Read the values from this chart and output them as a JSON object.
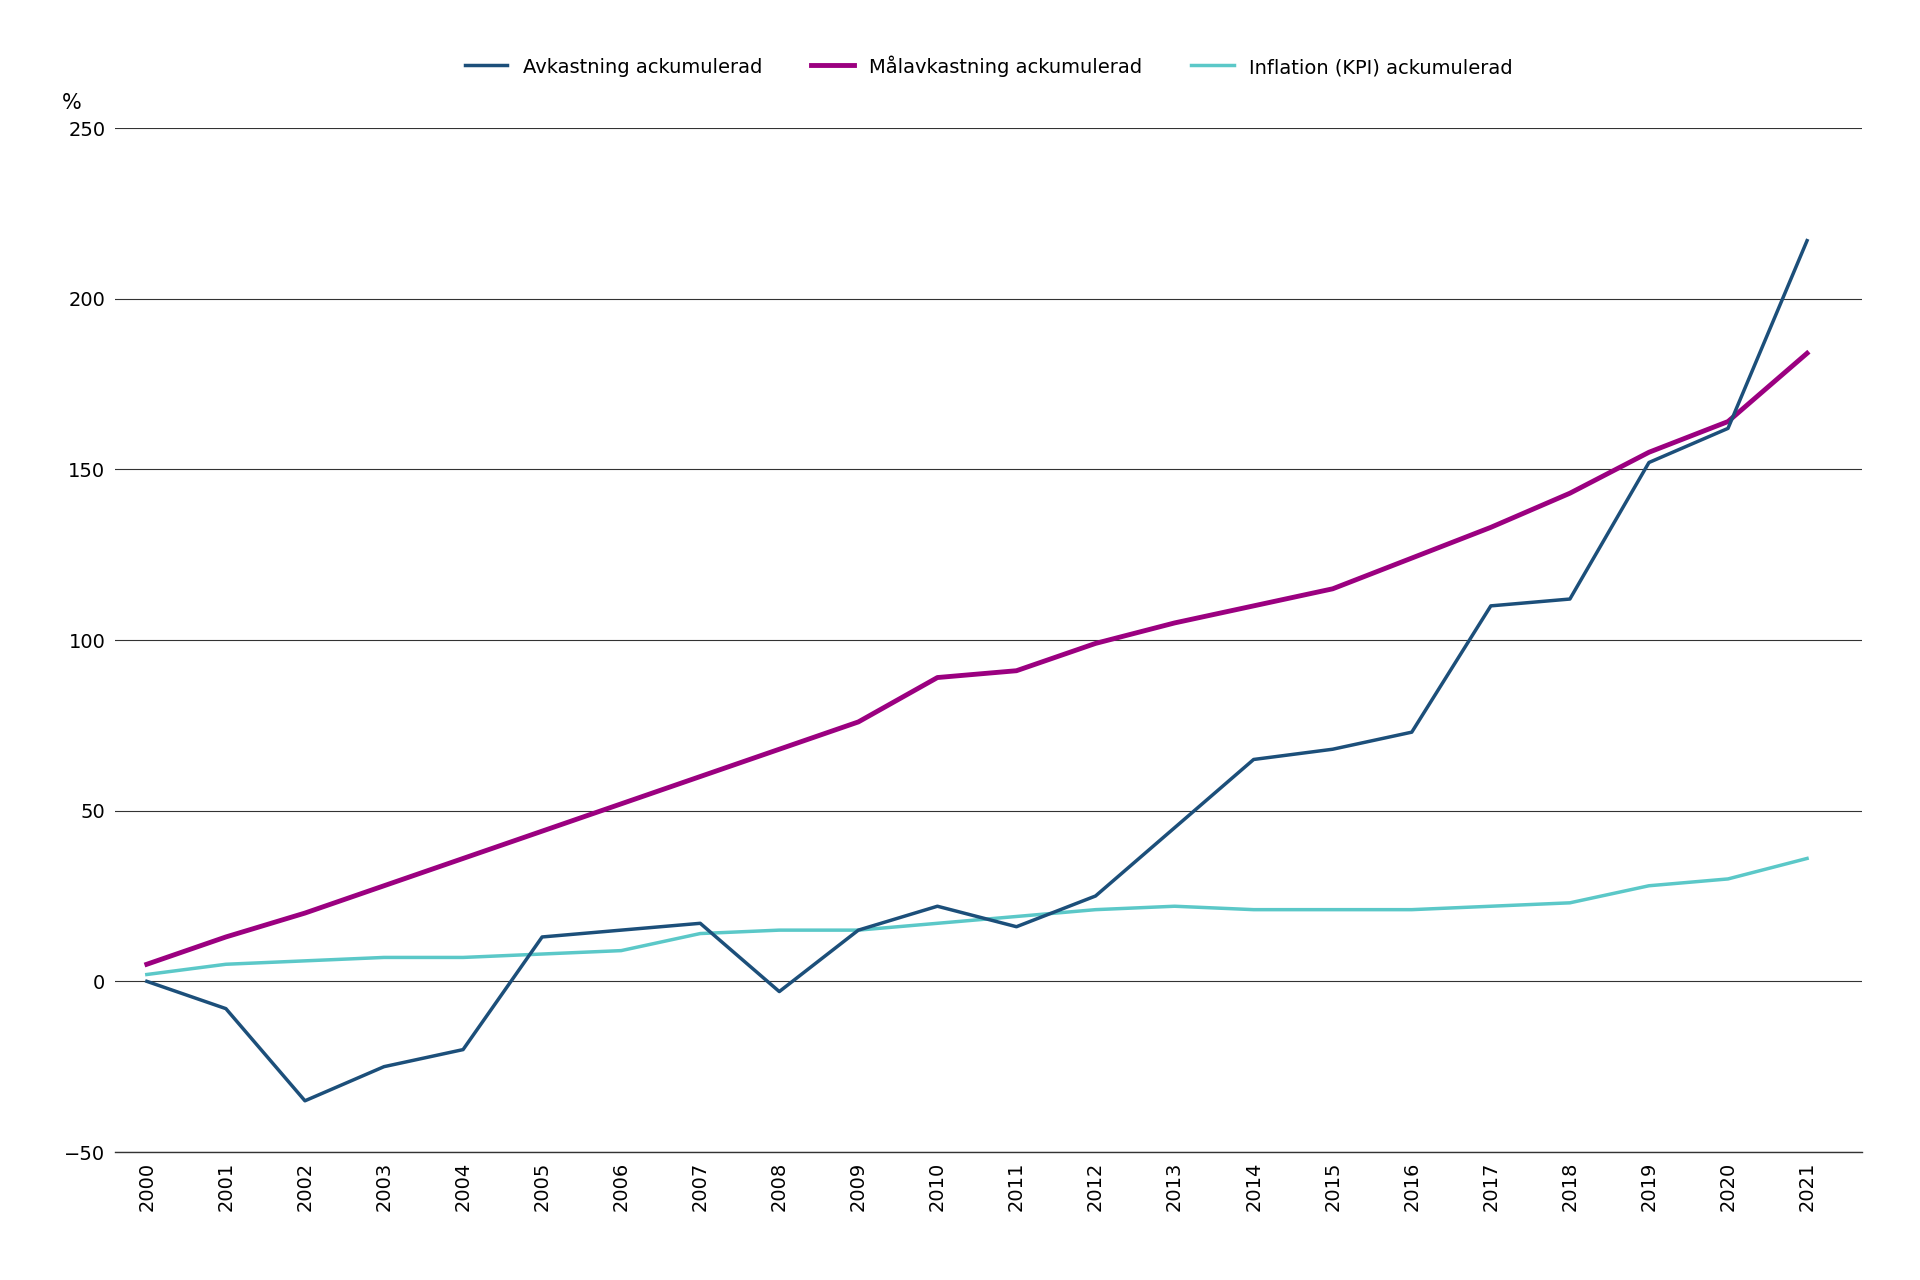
{
  "years": [
    2000,
    2001,
    2002,
    2003,
    2004,
    2005,
    2006,
    2007,
    2008,
    2009,
    2010,
    2011,
    2012,
    2013,
    2014,
    2015,
    2016,
    2017,
    2018,
    2019,
    2020,
    2021
  ],
  "avkastning": [
    0,
    -8,
    -35,
    -25,
    -20,
    13,
    15,
    17,
    -3,
    15,
    22,
    16,
    25,
    45,
    65,
    68,
    73,
    110,
    112,
    152,
    162,
    217
  ],
  "malavkastning": [
    5,
    13,
    20,
    28,
    36,
    44,
    52,
    60,
    68,
    76,
    89,
    91,
    99,
    105,
    110,
    115,
    124,
    133,
    143,
    155,
    164,
    184
  ],
  "inflation": [
    2,
    5,
    6,
    7,
    7,
    8,
    9,
    14,
    15,
    15,
    17,
    19,
    21,
    22,
    21,
    21,
    21,
    22,
    23,
    28,
    30,
    36
  ],
  "ylabel": "%",
  "ylim": [
    -50,
    250
  ],
  "yticks": [
    -50,
    0,
    50,
    100,
    150,
    200,
    250
  ],
  "legend_avkastning": "Avkastning ackumulerad",
  "legend_malavkastning": "Målavkastning ackumulerad",
  "legend_inflation": "Inflation (KPI) ackumulerad",
  "color_avkastning": "#1c4f7a",
  "color_malavkastning": "#9b0080",
  "color_inflation": "#5bc8c8",
  "linewidth_avkastning": 2.5,
  "linewidth_malavkastning": 3.5,
  "linewidth_inflation": 2.5,
  "background_color": "#ffffff",
  "grid_color": "#333333",
  "grid_linewidth": 0.8,
  "tick_fontsize": 14,
  "legend_fontsize": 14,
  "ylabel_fontsize": 15
}
